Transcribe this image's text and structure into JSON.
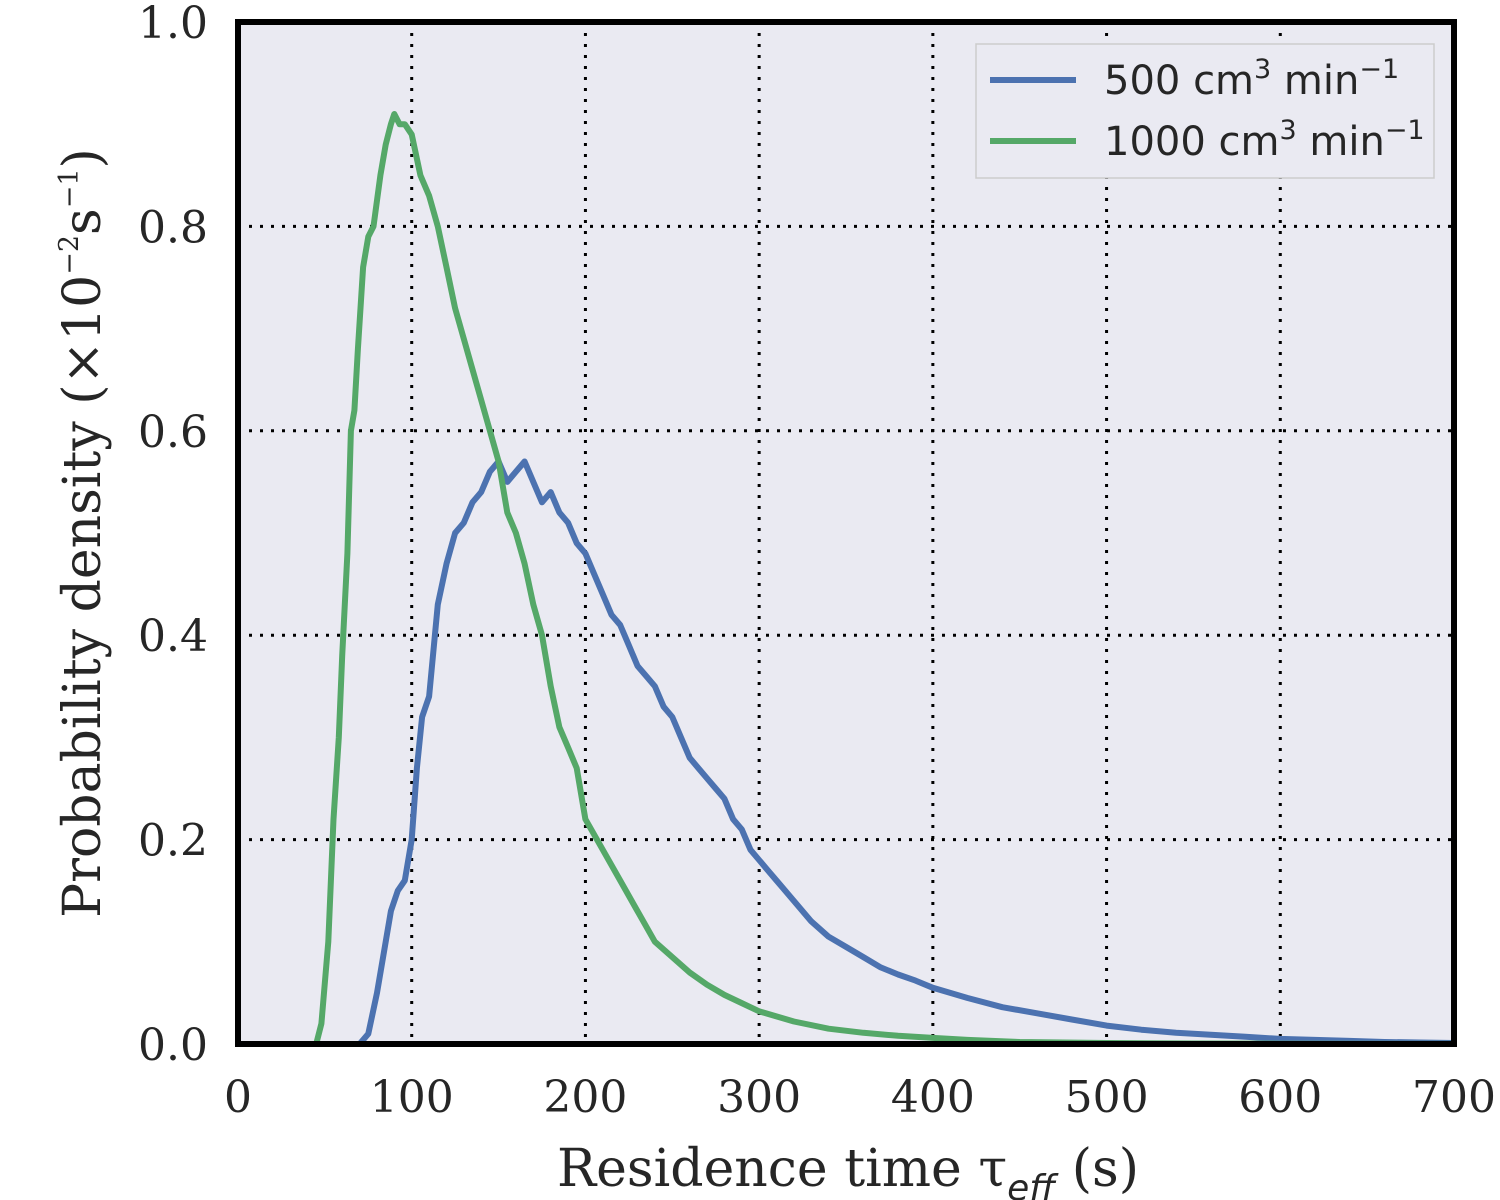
{
  "chart_data": {
    "type": "line",
    "xlabel": "Residence time τ",
    "xlabel_sub": "eff",
    "xlabel_unit": " (s)",
    "ylabel": "Probability density (×10",
    "ylabel_exp1": "−2",
    "ylabel_mid": "s",
    "ylabel_exp2": "−1",
    "ylabel_end": ")",
    "xlim": [
      0,
      700
    ],
    "ylim": [
      0,
      1.0
    ],
    "xticks": [
      0,
      100,
      200,
      300,
      400,
      500,
      600,
      700
    ],
    "xtick_labels": [
      "0",
      "100",
      "200",
      "300",
      "400",
      "500",
      "600",
      "700"
    ],
    "yticks": [
      0.0,
      0.2,
      0.4,
      0.6,
      0.8,
      1.0
    ],
    "ytick_labels": [
      "0.0",
      "0.2",
      "0.4",
      "0.6",
      "0.8",
      "1.0"
    ],
    "grid": true,
    "legend_position": "top-right",
    "series": [
      {
        "name": "500 cm³ min⁻¹",
        "legend_base": "500 cm",
        "legend_sup1": "3",
        "legend_mid": " min",
        "legend_sup2": "−1",
        "color": "#4c72b0",
        "x": [
          0,
          70,
          75,
          80,
          85,
          88,
          92,
          96,
          100,
          103,
          106,
          110,
          115,
          120,
          125,
          130,
          135,
          140,
          145,
          150,
          155,
          160,
          165,
          170,
          175,
          180,
          185,
          190,
          195,
          200,
          205,
          210,
          215,
          220,
          225,
          230,
          235,
          240,
          245,
          250,
          255,
          260,
          265,
          270,
          275,
          280,
          285,
          290,
          295,
          300,
          305,
          310,
          320,
          330,
          340,
          350,
          360,
          370,
          380,
          390,
          400,
          420,
          440,
          460,
          480,
          500,
          520,
          540,
          560,
          580,
          600,
          620,
          640,
          660,
          680,
          700
        ],
        "y": [
          0,
          0,
          0.01,
          0.05,
          0.1,
          0.13,
          0.15,
          0.16,
          0.2,
          0.27,
          0.32,
          0.34,
          0.43,
          0.47,
          0.5,
          0.51,
          0.53,
          0.54,
          0.56,
          0.57,
          0.55,
          0.56,
          0.57,
          0.55,
          0.53,
          0.54,
          0.52,
          0.51,
          0.49,
          0.48,
          0.46,
          0.44,
          0.42,
          0.41,
          0.39,
          0.37,
          0.36,
          0.35,
          0.33,
          0.32,
          0.3,
          0.28,
          0.27,
          0.26,
          0.25,
          0.24,
          0.22,
          0.21,
          0.19,
          0.18,
          0.17,
          0.16,
          0.14,
          0.12,
          0.105,
          0.095,
          0.085,
          0.075,
          0.068,
          0.062,
          0.055,
          0.045,
          0.036,
          0.03,
          0.024,
          0.018,
          0.014,
          0.011,
          0.009,
          0.007,
          0.005,
          0.004,
          0.003,
          0.002,
          0.0015,
          0.001
        ]
      },
      {
        "name": "1000 cm³ min⁻¹",
        "legend_base": "1000 cm",
        "legend_sup1": "3",
        "legend_mid": " min",
        "legend_sup2": "−1",
        "color": "#55a868",
        "x": [
          0,
          45,
          48,
          52,
          55,
          58,
          60,
          63,
          65,
          67,
          69,
          72,
          75,
          78,
          82,
          85,
          88,
          90,
          93,
          96,
          100,
          105,
          110,
          115,
          120,
          125,
          130,
          135,
          140,
          145,
          150,
          155,
          160,
          165,
          170,
          175,
          180,
          185,
          190,
          195,
          200,
          210,
          220,
          230,
          240,
          250,
          260,
          270,
          280,
          290,
          300,
          320,
          340,
          360,
          380,
          400,
          420,
          450,
          500,
          550,
          600,
          700
        ],
        "y": [
          0,
          0,
          0.02,
          0.1,
          0.22,
          0.3,
          0.38,
          0.48,
          0.6,
          0.62,
          0.68,
          0.76,
          0.79,
          0.8,
          0.85,
          0.88,
          0.9,
          0.91,
          0.9,
          0.9,
          0.89,
          0.85,
          0.83,
          0.8,
          0.76,
          0.72,
          0.69,
          0.66,
          0.63,
          0.6,
          0.57,
          0.52,
          0.5,
          0.47,
          0.43,
          0.4,
          0.35,
          0.31,
          0.29,
          0.27,
          0.22,
          0.19,
          0.16,
          0.13,
          0.1,
          0.085,
          0.07,
          0.058,
          0.048,
          0.04,
          0.032,
          0.022,
          0.015,
          0.011,
          0.008,
          0.006,
          0.004,
          0.002,
          0.001,
          0.0005,
          0.0003,
          0.0001
        ]
      }
    ]
  }
}
